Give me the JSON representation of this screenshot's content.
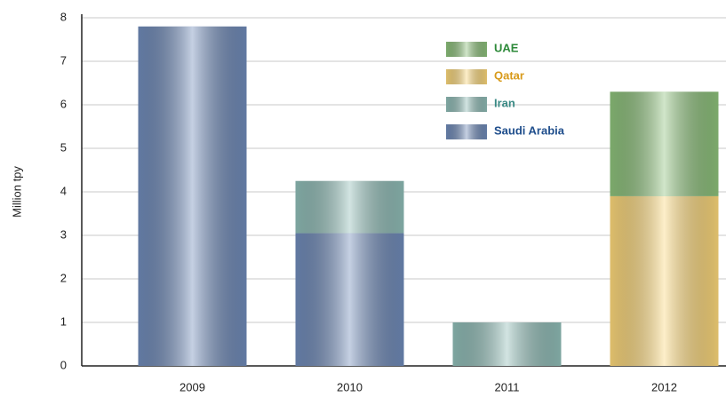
{
  "chart_data": {
    "type": "stacked_bar",
    "y_label": "Million tpy",
    "categories": [
      "2009",
      "2010",
      "2011",
      "2012"
    ],
    "series": [
      {
        "name": "Saudi Arabia",
        "color": "#6f8ab8",
        "text_color": "#1f4e8c",
        "values": [
          7.8,
          3.05,
          0,
          0
        ]
      },
      {
        "name": "Iran",
        "color": "#8fbcb6",
        "text_color": "#3a8a85",
        "values": [
          0,
          1.2,
          1.0,
          0
        ]
      },
      {
        "name": "Qatar",
        "color": "#fbd77a",
        "text_color": "#d89a1a",
        "values": [
          0,
          0,
          0,
          3.9
        ]
      },
      {
        "name": "UAE",
        "color": "#8cc07a",
        "text_color": "#2e8a3a",
        "values": [
          0,
          0,
          0,
          2.4
        ]
      }
    ],
    "ylim": [
      0,
      8
    ],
    "yticks": [
      0,
      1,
      2,
      3,
      4,
      5,
      6,
      7,
      8
    ],
    "grid": true
  }
}
